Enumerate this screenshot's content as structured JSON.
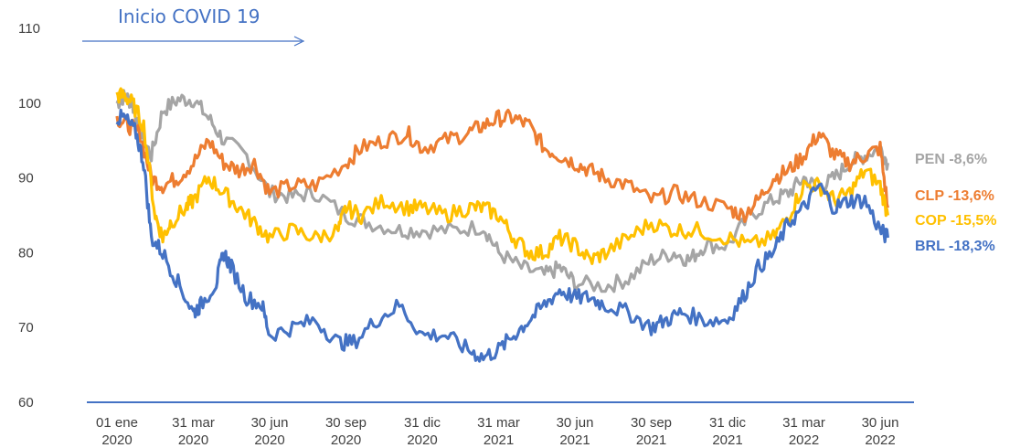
{
  "chart_data": {
    "type": "line",
    "title": "",
    "xlabel": "",
    "ylabel": "",
    "ylim": [
      60,
      110
    ],
    "y_ticks": [
      "60",
      "70",
      "80",
      "90",
      "100",
      "110"
    ],
    "x_ticks": [
      {
        "line1": "01 ene",
        "line2": "2020"
      },
      {
        "line1": "31 mar",
        "line2": "2020"
      },
      {
        "line1": "30 jun",
        "line2": "2020"
      },
      {
        "line1": "30 sep",
        "line2": "2020"
      },
      {
        "line1": "31 dic",
        "line2": "2020"
      },
      {
        "line1": "31 mar",
        "line2": "2021"
      },
      {
        "line1": "30 jun",
        "line2": "2021"
      },
      {
        "line1": "30 sep",
        "line2": "2021"
      },
      {
        "line1": "31 dic",
        "line2": "2021"
      },
      {
        "line1": "31 mar",
        "line2": "2022"
      },
      {
        "line1": "30 jun",
        "line2": "2022"
      }
    ],
    "grid": false,
    "annotation": {
      "text": "Inicio COVID 19"
    },
    "series": [
      {
        "label": "PEN -8,6%",
        "color": "#A5A5A5",
        "values": [
          [
            0,
            100
          ],
          [
            0.1,
            101
          ],
          [
            0.2,
            100
          ],
          [
            0.3,
            96
          ],
          [
            0.45,
            93
          ],
          [
            0.6,
            99
          ],
          [
            0.8,
            100.5
          ],
          [
            1,
            100.5
          ],
          [
            1.2,
            98
          ],
          [
            1.4,
            95
          ],
          [
            1.7,
            93
          ],
          [
            2,
            88
          ],
          [
            2.3,
            87.5
          ],
          [
            2.6,
            88
          ],
          [
            3,
            85
          ],
          [
            3.3,
            84
          ],
          [
            3.7,
            83
          ],
          [
            4,
            83
          ],
          [
            4.4,
            83
          ],
          [
            4.8,
            83.5
          ],
          [
            5,
            80
          ],
          [
            5.3,
            78
          ],
          [
            5.6,
            77
          ],
          [
            5.8,
            78
          ],
          [
            6,
            76
          ],
          [
            6.4,
            75.5
          ],
          [
            6.7,
            76.5
          ],
          [
            7,
            79
          ],
          [
            7.3,
            80
          ],
          [
            7.5,
            79
          ],
          [
            7.7,
            81
          ],
          [
            8,
            81
          ],
          [
            8.3,
            85
          ],
          [
            8.6,
            87
          ],
          [
            8.8,
            88
          ],
          [
            9,
            90
          ],
          [
            9.2,
            88.5
          ],
          [
            9.4,
            90
          ],
          [
            9.6,
            92
          ],
          [
            9.8,
            93
          ],
          [
            10,
            94
          ],
          [
            10.1,
            92
          ]
        ]
      },
      {
        "label": "CLP -13,6%",
        "color": "#ED7D31",
        "values": [
          [
            0,
            98
          ],
          [
            0.15,
            97
          ],
          [
            0.3,
            96
          ],
          [
            0.45,
            90
          ],
          [
            0.6,
            89
          ],
          [
            0.8,
            90
          ],
          [
            1,
            92
          ],
          [
            1.2,
            95
          ],
          [
            1.4,
            92
          ],
          [
            1.6,
            91
          ],
          [
            1.8,
            92
          ],
          [
            2,
            88
          ],
          [
            2.3,
            89
          ],
          [
            2.6,
            89
          ],
          [
            3,
            92
          ],
          [
            3.2,
            94
          ],
          [
            3.5,
            95
          ],
          [
            3.8,
            96
          ],
          [
            4,
            94
          ],
          [
            4.3,
            95
          ],
          [
            4.6,
            96
          ],
          [
            4.8,
            97
          ],
          [
            5,
            98
          ],
          [
            5.2,
            98
          ],
          [
            5.4,
            97
          ],
          [
            5.6,
            94
          ],
          [
            5.8,
            93
          ],
          [
            6,
            92
          ],
          [
            6.2,
            91
          ],
          [
            6.4,
            90
          ],
          [
            6.7,
            89
          ],
          [
            7,
            87
          ],
          [
            7.3,
            88
          ],
          [
            7.6,
            87
          ],
          [
            8,
            86
          ],
          [
            8.2,
            85
          ],
          [
            8.4,
            87
          ],
          [
            8.6,
            90
          ],
          [
            8.8,
            91
          ],
          [
            9,
            93
          ],
          [
            9.2,
            96
          ],
          [
            9.4,
            93
          ],
          [
            9.6,
            92
          ],
          [
            9.8,
            93
          ],
          [
            10,
            94
          ],
          [
            10.1,
            86
          ]
        ]
      },
      {
        "label": "COP -15,5%",
        "color": "#FFC000",
        "values": [
          [
            0,
            101
          ],
          [
            0.1,
            101
          ],
          [
            0.2,
            100
          ],
          [
            0.35,
            97
          ],
          [
            0.5,
            85
          ],
          [
            0.6,
            82
          ],
          [
            0.7,
            84
          ],
          [
            0.9,
            86
          ],
          [
            1,
            87
          ],
          [
            1.2,
            90
          ],
          [
            1.4,
            88
          ],
          [
            1.6,
            86
          ],
          [
            1.8,
            84
          ],
          [
            2,
            82
          ],
          [
            2.3,
            83
          ],
          [
            2.6,
            82
          ],
          [
            2.9,
            83
          ],
          [
            3,
            86
          ],
          [
            3.2,
            85
          ],
          [
            3.5,
            87
          ],
          [
            3.8,
            86
          ],
          [
            4,
            86
          ],
          [
            4.3,
            85
          ],
          [
            4.6,
            86
          ],
          [
            4.8,
            86
          ],
          [
            5,
            85
          ],
          [
            5.2,
            82
          ],
          [
            5.4,
            80
          ],
          [
            5.6,
            80
          ],
          [
            5.8,
            82
          ],
          [
            6,
            81
          ],
          [
            6.2,
            79
          ],
          [
            6.4,
            80
          ],
          [
            6.7,
            82
          ],
          [
            7,
            84
          ],
          [
            7.3,
            83
          ],
          [
            7.6,
            83
          ],
          [
            8,
            82
          ],
          [
            8.3,
            81
          ],
          [
            8.6,
            82
          ],
          [
            8.8,
            85
          ],
          [
            9,
            89
          ],
          [
            9.2,
            89
          ],
          [
            9.4,
            87
          ],
          [
            9.6,
            88
          ],
          [
            9.8,
            91
          ],
          [
            10,
            89
          ],
          [
            10.1,
            85
          ]
        ]
      },
      {
        "label": "BRL -18,3%",
        "color": "#4472C4",
        "values": [
          [
            0,
            98
          ],
          [
            0.1,
            98
          ],
          [
            0.25,
            96
          ],
          [
            0.35,
            92
          ],
          [
            0.45,
            82
          ],
          [
            0.6,
            80
          ],
          [
            0.8,
            76
          ],
          [
            1,
            72
          ],
          [
            1.1,
            73
          ],
          [
            1.3,
            76
          ],
          [
            1.4,
            80
          ],
          [
            1.5,
            78
          ],
          [
            1.7,
            74
          ],
          [
            1.9,
            73
          ],
          [
            2,
            69
          ],
          [
            2.3,
            70
          ],
          [
            2.6,
            71
          ],
          [
            2.9,
            68
          ],
          [
            3.1,
            68
          ],
          [
            3.4,
            71
          ],
          [
            3.7,
            73
          ],
          [
            4,
            69
          ],
          [
            4.3,
            69
          ],
          [
            4.6,
            67
          ],
          [
            4.8,
            66
          ],
          [
            5,
            67
          ],
          [
            5.2,
            69
          ],
          [
            5.4,
            71
          ],
          [
            5.6,
            73
          ],
          [
            5.8,
            75
          ],
          [
            6,
            74
          ],
          [
            6.2,
            74
          ],
          [
            6.4,
            73
          ],
          [
            6.7,
            72
          ],
          [
            7,
            70
          ],
          [
            7.2,
            71
          ],
          [
            7.4,
            72
          ],
          [
            7.7,
            71
          ],
          [
            8,
            71
          ],
          [
            8.2,
            74
          ],
          [
            8.4,
            78
          ],
          [
            8.6,
            80
          ],
          [
            8.8,
            84
          ],
          [
            9,
            86
          ],
          [
            9.2,
            89
          ],
          [
            9.4,
            86
          ],
          [
            9.6,
            87
          ],
          [
            9.8,
            87
          ],
          [
            10,
            83
          ],
          [
            10.1,
            82
          ]
        ]
      }
    ]
  }
}
